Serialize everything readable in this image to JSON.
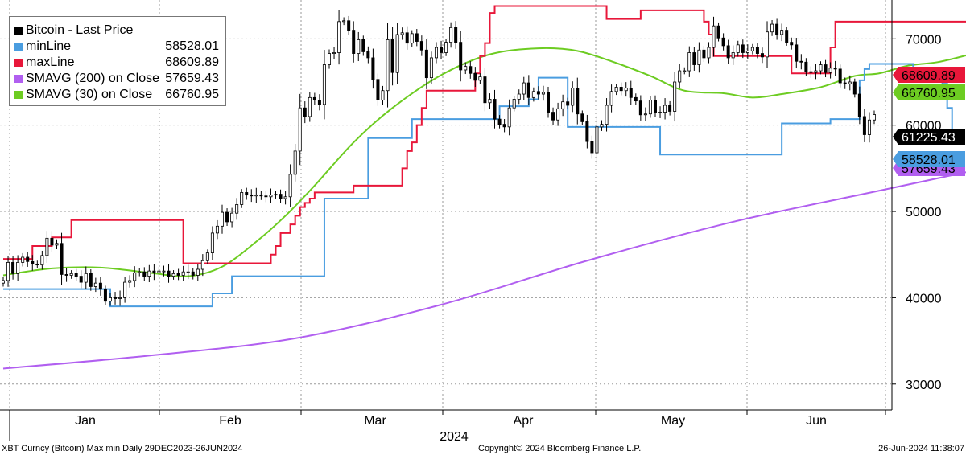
{
  "chart_data": {
    "type": "candlestick",
    "legend": [
      {
        "name": "Bitcoin - Last Price",
        "value": "",
        "color": "#000000"
      },
      {
        "name": "minLine",
        "value": "58528.01",
        "color": "#4a9de0"
      },
      {
        "name": "maxLine",
        "value": "68609.89",
        "color": "#e8173a"
      },
      {
        "name": "SMAVG (200)  on Close",
        "value": "57659.43",
        "color": "#b15ff0"
      },
      {
        "name": "SMAVG (30)  on Close",
        "value": "66760.95",
        "color": "#6dcc22"
      }
    ],
    "y_ticks": [
      "70000",
      "60000",
      "50000",
      "40000",
      "30000"
    ],
    "y_range": [
      27000,
      74500
    ],
    "x_labels": [
      "Jan",
      "Feb",
      "Mar",
      "Apr",
      "May",
      "Jun"
    ],
    "year_label": "2024",
    "price_tags": [
      {
        "value": "68609.89",
        "color": "#e8173a",
        "text_color": "#000000",
        "series": "maxLine"
      },
      {
        "value": "66760.95",
        "color": "#6dcc22",
        "text_color": "#000000",
        "series": "SMAVG (30)"
      },
      {
        "value": "61225.43",
        "color": "#000000",
        "text_color": "#ffffff",
        "series": "Last Price"
      },
      {
        "value": "58528.01",
        "color": "#4a9de0",
        "text_color": "#000000",
        "series": "minLine"
      },
      {
        "value": "57659.43",
        "color": "#b15ff0",
        "text_color": "#000000",
        "series": "SMAVG (200)"
      }
    ],
    "close": [
      42000,
      44100,
      42800,
      44100,
      44700,
      44200,
      43900,
      43800,
      44900,
      46900,
      46100,
      46300,
      42700,
      42600,
      42800,
      42500,
      41800,
      42800,
      41300,
      41700,
      41000,
      39600,
      40000,
      39900,
      40000,
      41800,
      42000,
      42900,
      43000,
      42500,
      43100,
      42900,
      43100,
      43100,
      42500,
      42800,
      42600,
      43000,
      43000,
      42600,
      43300,
      44300,
      45200,
      47500,
      48300,
      49900,
      48800,
      49800,
      50800,
      52200,
      51900,
      51800,
      51900,
      51800,
      51700,
      51900,
      52000,
      51500,
      51700,
      54300,
      57000,
      62000,
      61000,
      63200,
      62900,
      62400,
      67000,
      68300,
      68400,
      72000,
      72100,
      71000,
      68300,
      69900,
      68500,
      67800,
      65300,
      62900,
      64000,
      69900,
      66100,
      70500,
      70700,
      69500,
      70600,
      69700,
      68700,
      65500,
      67800,
      69000,
      68400,
      69600,
      71300,
      69600,
      66400,
      66800,
      66000,
      65200,
      65600,
      62600,
      63000,
      60700,
      60100,
      59800,
      62000,
      63000,
      63600,
      64900,
      63200,
      63900,
      63600,
      63800,
      61500,
      60600,
      61900,
      62700,
      62300,
      64300,
      61300,
      60400,
      58100,
      56800,
      59800,
      60100,
      62300,
      63900,
      64400,
      64000,
      64300,
      63200,
      62800,
      61200,
      61300,
      62900,
      61500,
      61500,
      62300,
      61600,
      65000,
      66300,
      66300,
      68400,
      67000,
      68700,
      67800,
      69000,
      71500,
      70100,
      69200,
      67800,
      68400,
      69300,
      68400,
      68600,
      69000,
      68300,
      67900,
      70800,
      71700,
      70500,
      71000,
      69600,
      69300,
      67400,
      67300,
      66200,
      66100,
      66300,
      67000,
      66100,
      66600,
      66500,
      64900,
      64800,
      65000,
      63600,
      61000,
      58900,
      60600,
      61225.43
    ],
    "minLine": [
      41000,
      41000,
      41000,
      41000,
      41000,
      41000,
      41000,
      41000,
      41000,
      41000,
      41000,
      41000,
      41000,
      41000,
      41000,
      41000,
      41000,
      41000,
      41000,
      41000,
      41000,
      41000,
      39000,
      39000,
      39000,
      39000,
      39000,
      39000,
      39000,
      39000,
      39000,
      39000,
      39000,
      39000,
      39000,
      39000,
      39000,
      39000,
      39000,
      39000,
      39000,
      39000,
      39000,
      40500,
      40500,
      40500,
      40500,
      42500,
      42500,
      42500,
      42500,
      42500,
      42500,
      42500,
      42500,
      42500,
      42500,
      42500,
      42500,
      42500,
      42500,
      42500,
      42500,
      42500,
      42500,
      42500,
      51500,
      51500,
      51500,
      51500,
      51500,
      51500,
      51500,
      51500,
      51500,
      58500,
      58500,
      58500,
      58500,
      58500,
      58500,
      58500,
      58500,
      58500,
      60700,
      60700,
      60700,
      60700,
      60700,
      60700,
      60700,
      60700,
      60700,
      60700,
      60700,
      60700,
      60700,
      60700,
      60700,
      60700,
      60700,
      60700,
      62200,
      62200,
      62200,
      62200,
      62200,
      62200,
      63000,
      63000,
      65500,
      65500,
      65500,
      65500,
      65500,
      65500,
      59800,
      59800,
      59800,
      59800,
      59800,
      59800,
      59800,
      59800,
      59800,
      59800,
      59800,
      59800,
      59800,
      59800,
      59800,
      59800,
      59800,
      59800,
      59800,
      56600,
      56600,
      56600,
      56600,
      56600,
      56600,
      56600,
      56600,
      56600,
      56600,
      56600,
      56600,
      56600,
      56600,
      56600,
      56600,
      56600,
      56600,
      56600,
      56600,
      56600,
      56600,
      56600,
      56600,
      56600,
      60200,
      60200,
      60200,
      60200,
      60200,
      60200,
      60200,
      60200,
      60200,
      60200,
      60700,
      60700,
      60700,
      60700,
      60700,
      60700,
      65200,
      66500,
      67100,
      67100,
      67100,
      67100,
      67100,
      67100,
      67100,
      67100,
      67100,
      66500,
      66000,
      66000,
      66000,
      65300,
      65300,
      64800,
      62000,
      58528.01,
      58528.01
    ],
    "maxLine": [
      44500,
      44500,
      44500,
      44500,
      44500,
      44500,
      46000,
      46000,
      46000,
      46000,
      47000,
      47000,
      47000,
      47000,
      49000,
      49000,
      49000,
      49000,
      49000,
      49000,
      49000,
      49000,
      49000,
      49000,
      49000,
      49000,
      49000,
      49000,
      49000,
      49000,
      49000,
      49000,
      49000,
      49000,
      49000,
      49000,
      49000,
      44000,
      44000,
      44000,
      44000,
      44000,
      44000,
      44000,
      44000,
      44000,
      44000,
      44000,
      44000,
      44000,
      44000,
      44000,
      44000,
      44000,
      44000,
      45000,
      46000,
      47500,
      47500,
      48500,
      49500,
      50500,
      51000,
      51500,
      52200,
      52200,
      52200,
      52200,
      52200,
      52200,
      52200,
      52200,
      53000,
      53000,
      53000,
      53000,
      53000,
      53000,
      53000,
      53000,
      53000,
      53000,
      55000,
      57000,
      58000,
      60000,
      62000,
      64000,
      64000,
      64000,
      64000,
      64000,
      64000,
      64000,
      64000,
      64000,
      64000,
      66000,
      68000,
      69500,
      73000,
      73800,
      73800,
      73800,
      73800,
      73800,
      73800,
      73800,
      73800,
      73800,
      73800,
      73800,
      73800,
      73800,
      73800,
      73800,
      73800,
      73800,
      73800,
      73800,
      73800,
      73800,
      73800,
      73800,
      72300,
      72300,
      72300,
      72300,
      72300,
      72300,
      72300,
      73300,
      73300,
      73300,
      73300,
      73300,
      73300,
      73300,
      73300,
      73300,
      73300,
      73300,
      73300,
      73300,
      72000,
      70500,
      68000,
      68000,
      68000,
      68000,
      68000,
      68000,
      68000,
      68000,
      68000,
      68000,
      68000,
      68000,
      68000,
      68000,
      68000,
      68000,
      66000,
      66000,
      66000,
      66000,
      66000,
      66000,
      66000,
      66000,
      69000,
      72000,
      72000,
      72000,
      72000,
      72000,
      72000,
      72000,
      72000,
      72000,
      72000,
      72000,
      72000,
      72000,
      72000,
      72000,
      72000,
      72000,
      72000,
      72000,
      72000,
      72000,
      72000,
      72000,
      72000,
      72000,
      72000,
      72000,
      72000,
      72000,
      72000,
      72000,
      72000,
      70500,
      70500,
      70500,
      70000,
      68609.89
    ],
    "smavg30_knots": [
      [
        0,
        42600
      ],
      [
        10,
        43400
      ],
      [
        20,
        43500
      ],
      [
        30,
        42900
      ],
      [
        38,
        42500
      ],
      [
        45,
        43600
      ],
      [
        52,
        46500
      ],
      [
        58,
        49500
      ],
      [
        64,
        53000
      ],
      [
        72,
        58000
      ],
      [
        80,
        62000
      ],
      [
        90,
        65800
      ],
      [
        100,
        68200
      ],
      [
        110,
        68900
      ],
      [
        118,
        68600
      ],
      [
        126,
        67200
      ],
      [
        133,
        65700
      ],
      [
        140,
        64000
      ],
      [
        148,
        63700
      ],
      [
        154,
        63200
      ],
      [
        160,
        63600
      ],
      [
        168,
        64400
      ],
      [
        175,
        65700
      ],
      [
        180,
        66000
      ],
      [
        186,
        66900
      ],
      [
        192,
        67300
      ],
      [
        198,
        68100
      ],
      [
        204,
        69100
      ],
      [
        212,
        68800
      ],
      [
        219,
        67900
      ],
      [
        224,
        66760.95
      ]
    ],
    "smavg200_knots": [
      [
        0,
        31800
      ],
      [
        30,
        33300
      ],
      [
        60,
        35300
      ],
      [
        90,
        39200
      ],
      [
        120,
        44300
      ],
      [
        150,
        48800
      ],
      [
        180,
        52400
      ],
      [
        205,
        55400
      ],
      [
        224,
        57659.43
      ]
    ]
  },
  "footer": {
    "left": "XBT Curncy (Bitcoin) Max min  Daily 29DEC2023-26JUN2024",
    "center": "Copyright© 2024 Bloomberg Finance L.P.",
    "right": "26-Jun-2024 11:38:07"
  }
}
